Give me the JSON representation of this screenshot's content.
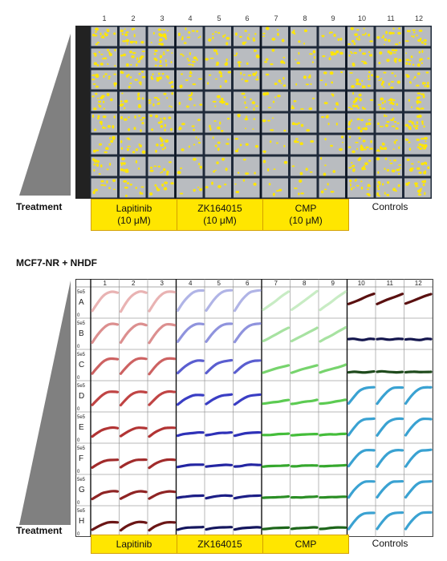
{
  "top_panel": {
    "column_numbers": [
      "1",
      "2",
      "3",
      "4",
      "5",
      "6",
      "7",
      "8",
      "9",
      "10",
      "11",
      "12"
    ],
    "treatment_label": "Treatment",
    "groups": [
      {
        "line1": "Lapitinib",
        "line2": "(10 μM)",
        "color": "#ffe600"
      },
      {
        "line1": "ZK164015",
        "line2": "(10 μM)",
        "color": "#ffe600"
      },
      {
        "line1": "CMP",
        "line2": "(10 μM)",
        "color": "#ffe600"
      }
    ],
    "controls_label": "Controls",
    "overlay_color": "#ffe600"
  },
  "bottom_panel": {
    "title": "MCF7-NR + NHDF",
    "column_numbers": [
      "1",
      "2",
      "3",
      "4",
      "5",
      "6",
      "7",
      "8",
      "9",
      "10",
      "11",
      "12"
    ],
    "row_letters": [
      "A",
      "B",
      "C",
      "D",
      "E",
      "F",
      "G",
      "H"
    ],
    "y_max_label": "5e5",
    "y_min_label": "0",
    "x_end_label": "5d",
    "treatment_label": "Treatment",
    "groups": [
      "Lapitinib",
      "ZK164015",
      "CMP"
    ],
    "controls_label": "Controls",
    "series_colors": {
      "lapitinib": [
        "#e9b3b3",
        "#dc8f8f",
        "#cd6262",
        "#c04444",
        "#b23434",
        "#a12b2b",
        "#8f2424",
        "#6b1616"
      ],
      "zk164015": [
        "#b0b4e6",
        "#8f93dd",
        "#5a5ed0",
        "#3a3ec4",
        "#2e31b8",
        "#2325a2",
        "#1c1e86",
        "#14165e"
      ],
      "cmp": [
        "#c8ecc4",
        "#a7e2a1",
        "#77d46d",
        "#5ccb52",
        "#44bd3a",
        "#35a72d",
        "#2b8e25",
        "#1d661a"
      ],
      "controls": [
        "#5a1010",
        "#14164e",
        "#1e4a1c",
        "#3aa2d2",
        "#3aa2d2",
        "#3aa2d2",
        "#3aa2d2",
        "#3aa2d2"
      ]
    }
  }
}
